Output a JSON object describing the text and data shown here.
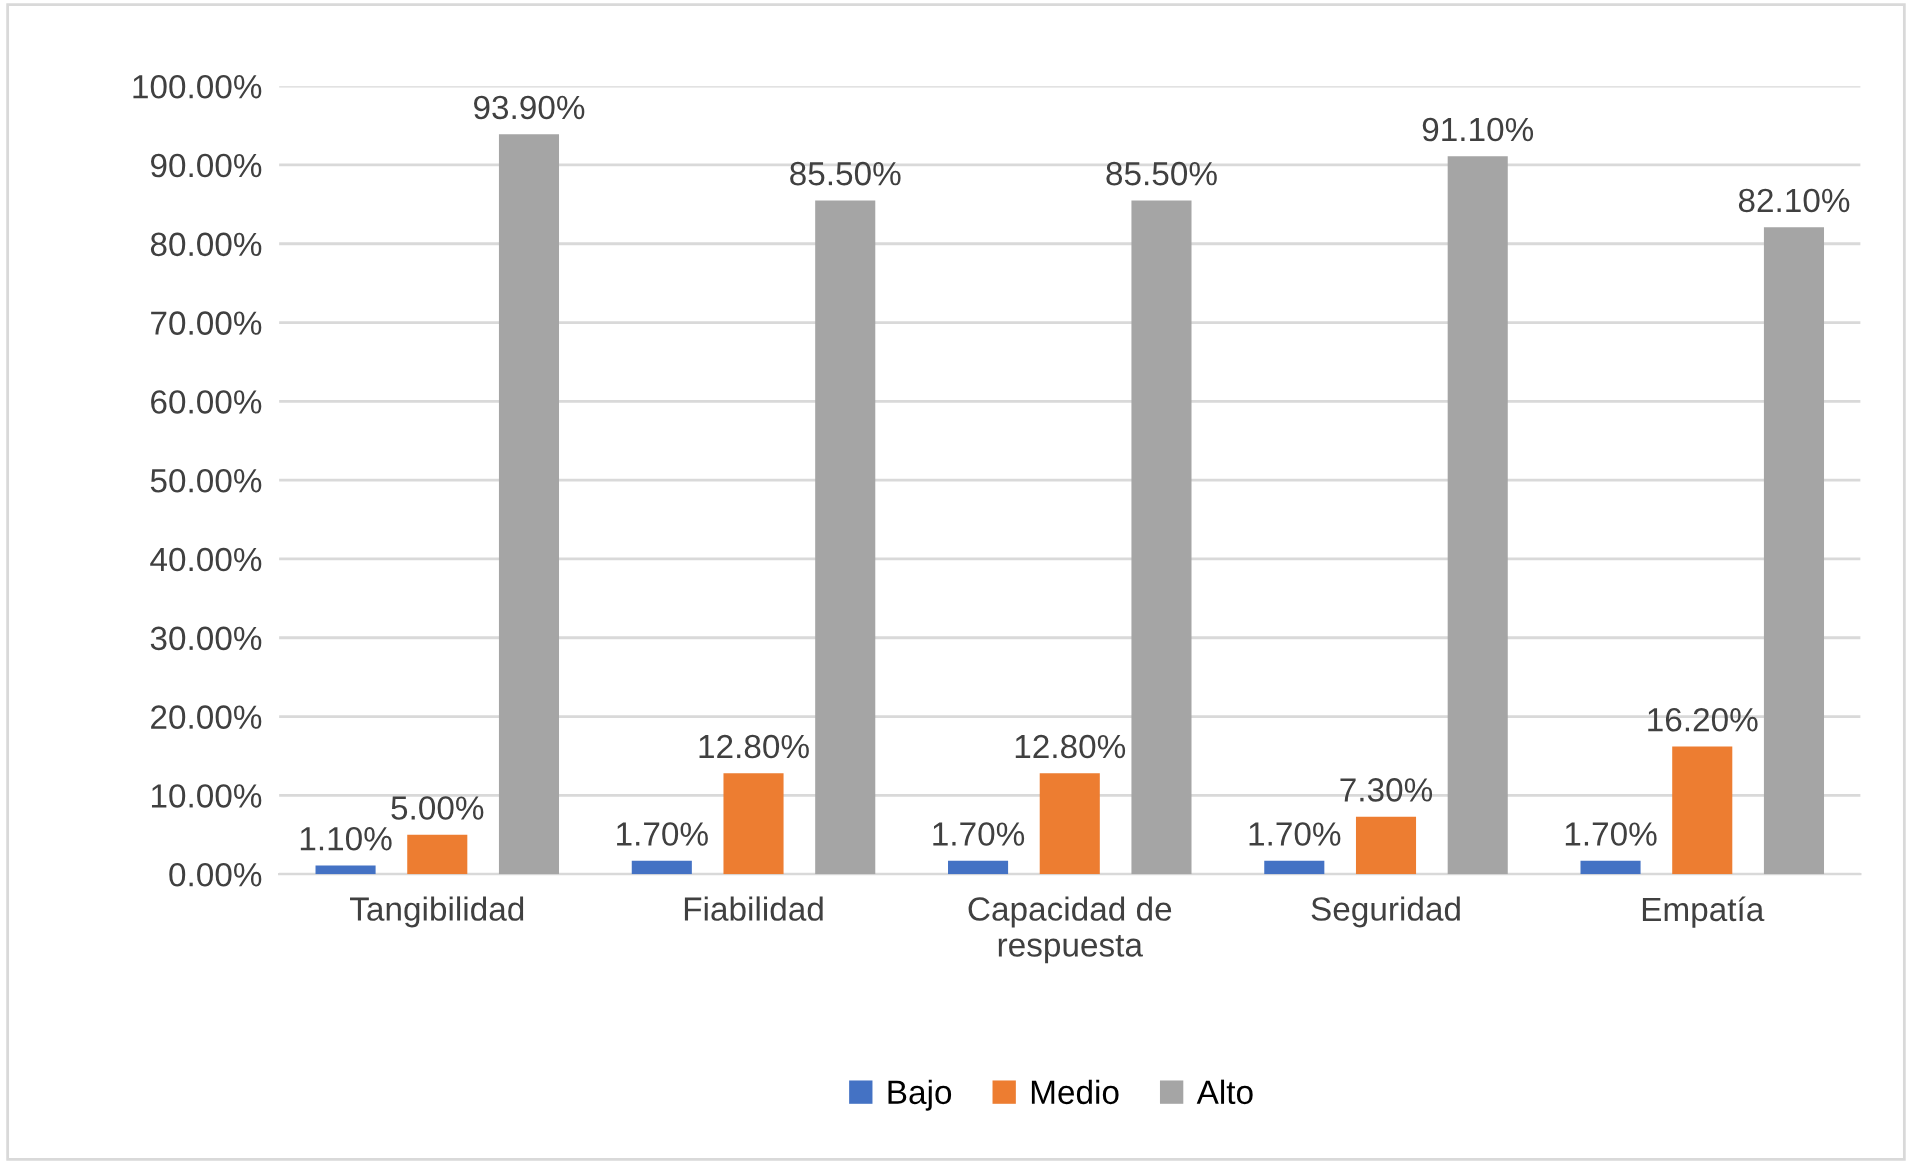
{
  "chart_data": {
    "type": "bar",
    "categories": [
      "Tangibilidad",
      "Fiabilidad",
      "Capacidad de\nrespuesta",
      "Seguridad",
      "Empatía"
    ],
    "series": [
      {
        "name": "Bajo",
        "color": "#4472c4",
        "values": [
          1.1,
          1.7,
          1.7,
          1.7,
          1.7
        ],
        "value_labels": [
          "1.10%",
          "1.70%",
          "1.70%",
          "1.70%",
          "1.70%"
        ]
      },
      {
        "name": "Medio",
        "color": "#ed7d31",
        "values": [
          5.0,
          12.8,
          12.8,
          7.3,
          16.2
        ],
        "value_labels": [
          "5.00%",
          "12.80%",
          "12.80%",
          "7.30%",
          "16.20%"
        ]
      },
      {
        "name": "Alto",
        "color": "#a5a5a5",
        "values": [
          93.9,
          85.5,
          85.5,
          91.1,
          82.1
        ],
        "value_labels": [
          "93.90%",
          "85.50%",
          "85.50%",
          "91.10%",
          "82.10%"
        ]
      }
    ],
    "ylim": [
      0,
      100
    ],
    "yticks": [
      {
        "value": 0,
        "label": "0.00%"
      },
      {
        "value": 10,
        "label": "10.00%"
      },
      {
        "value": 20,
        "label": "20.00%"
      },
      {
        "value": 30,
        "label": "30.00%"
      },
      {
        "value": 40,
        "label": "40.00%"
      },
      {
        "value": 50,
        "label": "50.00%"
      },
      {
        "value": 60,
        "label": "60.00%"
      },
      {
        "value": 70,
        "label": "70.00%"
      },
      {
        "value": 80,
        "label": "80.00%"
      },
      {
        "value": 90,
        "label": "90.00%"
      },
      {
        "value": 100,
        "label": "100.00%"
      }
    ],
    "grid": "y",
    "legend": "bottom"
  }
}
